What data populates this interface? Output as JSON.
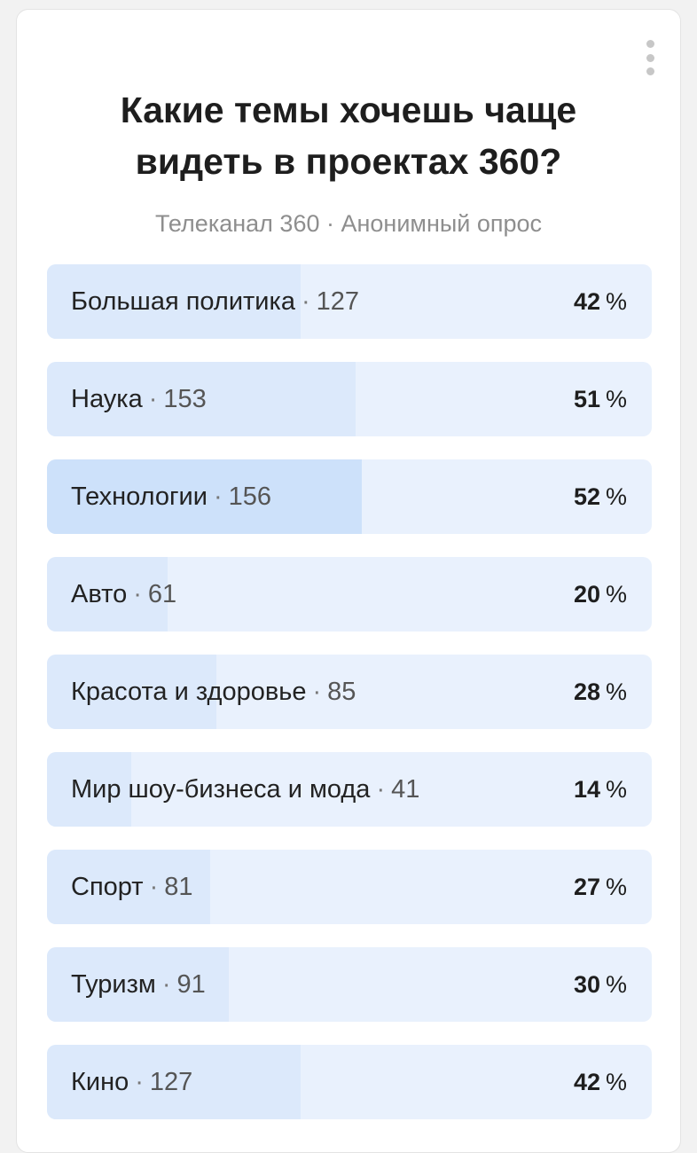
{
  "poll": {
    "title": "Какие темы хочешь чаще\nвидеть в проектах 360?",
    "subtitle": "Телеканал 360 · Анонимный опрос",
    "menu_icon": "more-vertical-icon",
    "colors": {
      "bar_bg": "#e9f1fd",
      "bar_fill": "#dce9fb",
      "bar_fill_leader": "#cde1fa"
    },
    "separator": "·",
    "percent_sign": "%",
    "options": [
      {
        "label": "Большая политика",
        "count": "127",
        "percent": "42",
        "share": 0.42
      },
      {
        "label": "Наука",
        "count": "153",
        "percent": "51",
        "share": 0.51
      },
      {
        "label": "Технологии",
        "count": "156",
        "percent": "52",
        "share": 0.52,
        "leader": true
      },
      {
        "label": "Авто",
        "count": "61",
        "percent": "20",
        "share": 0.2
      },
      {
        "label": "Красота и здоровье",
        "count": "85",
        "percent": "28",
        "share": 0.28
      },
      {
        "label": "Мир шоу-бизнеса и мода",
        "count": "41",
        "percent": "14",
        "share": 0.14
      },
      {
        "label": "Спорт",
        "count": "81",
        "percent": "27",
        "share": 0.27
      },
      {
        "label": "Туризм",
        "count": "91",
        "percent": "30",
        "share": 0.3
      },
      {
        "label": "Кино",
        "count": "127",
        "percent": "42",
        "share": 0.42
      }
    ]
  }
}
